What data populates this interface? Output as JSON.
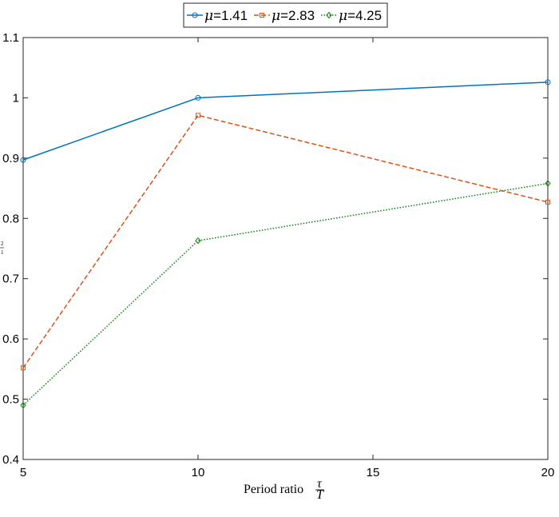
{
  "chart_data": {
    "type": "line",
    "x": [
      5,
      10,
      20
    ],
    "xlim": [
      5,
      20
    ],
    "ylim": [
      0.4,
      1.1
    ],
    "xticks": [
      5,
      10,
      15,
      20
    ],
    "xtick_labels": [
      "5",
      "10",
      "15",
      "20"
    ],
    "yticks": [
      0.4,
      0.5,
      0.6,
      0.7,
      0.8,
      0.9,
      1.0,
      1.1
    ],
    "ytick_labels": [
      "0.4",
      "0.5",
      "0.6",
      "0.7",
      "0.8",
      "0.9",
      "1",
      "1.1"
    ],
    "xlabel": {
      "text": "Period ratio",
      "numerator": "τ",
      "denominator": "T"
    },
    "ylabel": {
      "numerator": "2",
      "denominator": "1"
    },
    "grid": false,
    "legend_position": "top-center",
    "series": [
      {
        "name": "μ=1.41",
        "legend_symbol": "μ",
        "legend_value": "=1.41",
        "values": [
          0.897,
          1.0,
          1.026
        ],
        "color": "#0072BD",
        "dash": "solid",
        "marker": "circle"
      },
      {
        "name": "μ=2.83",
        "legend_symbol": "μ",
        "legend_value": "=2.83",
        "values": [
          0.552,
          0.971,
          0.827
        ],
        "color": "#D95319",
        "dash": "dashed",
        "marker": "square"
      },
      {
        "name": "μ=4.25",
        "legend_symbol": "μ",
        "legend_value": "=4.25",
        "values": [
          0.49,
          0.763,
          0.858
        ],
        "color": "#0F7F12",
        "dash": "dotted",
        "marker": "diamond"
      }
    ]
  }
}
